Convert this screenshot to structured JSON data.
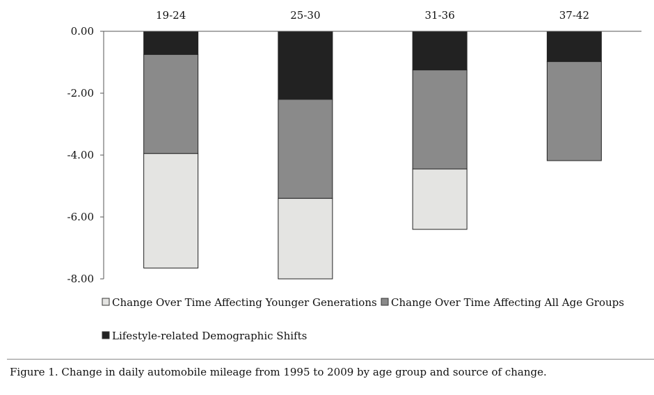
{
  "chart_data": {
    "type": "bar",
    "stacked": true,
    "categories": [
      "19-24",
      "25-30",
      "31-36",
      "37-42"
    ],
    "category_axis_position": "top",
    "ylim": [
      -8,
      0
    ],
    "yticks": [
      "0.00",
      "-2.00",
      "-4.00",
      "-6.00",
      "-8.00"
    ],
    "ytick_values": [
      0,
      -2,
      -4,
      -6,
      -8
    ],
    "grid": false,
    "legend_placement": "bottom",
    "series": [
      {
        "name": "Lifestyle-related Demographic Shifts",
        "values": [
          -0.75,
          -2.2,
          -1.25,
          -0.98
        ],
        "color": "#222222"
      },
      {
        "name": "Change Over Time Affecting All Age Groups",
        "values": [
          -3.2,
          -3.2,
          -3.2,
          -3.2
        ],
        "color": "#8a8a8a"
      },
      {
        "name": "Change Over Time Affecting Younger Generations",
        "values": [
          -3.7,
          -2.6,
          -1.95,
          0
        ],
        "color": "#e4e4e2"
      }
    ],
    "legend": [
      {
        "label": "Change Over Time Affecting Younger Generations",
        "color": "#e4e4e2"
      },
      {
        "label": "Change Over Time Affecting All Age Groups",
        "color": "#8a8a8a"
      },
      {
        "label": "Lifestyle-related Demographic Shifts",
        "color": "#222222"
      }
    ]
  },
  "caption": "Figure 1.  Change in daily automobile mileage from 1995 to 2009 by age group and source of change."
}
